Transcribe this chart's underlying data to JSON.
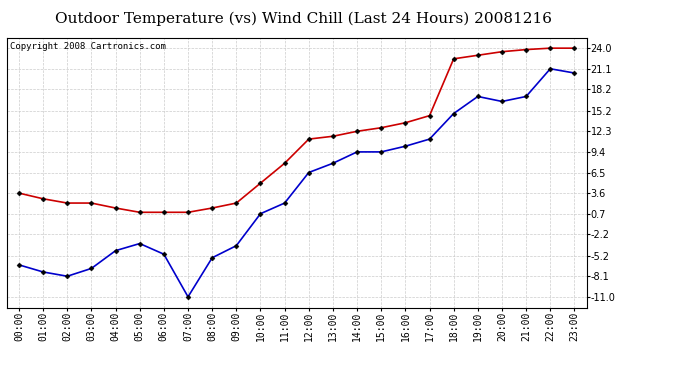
{
  "title": "Outdoor Temperature (vs) Wind Chill (Last 24 Hours) 20081216",
  "copyright": "Copyright 2008 Cartronics.com",
  "hours": [
    "00:00",
    "01:00",
    "02:00",
    "03:00",
    "04:00",
    "05:00",
    "06:00",
    "07:00",
    "08:00",
    "09:00",
    "10:00",
    "11:00",
    "12:00",
    "13:00",
    "14:00",
    "15:00",
    "16:00",
    "17:00",
    "18:00",
    "19:00",
    "20:00",
    "21:00",
    "22:00",
    "23:00"
  ],
  "temp": [
    3.6,
    2.8,
    2.2,
    2.2,
    1.5,
    0.9,
    0.9,
    0.9,
    1.5,
    2.2,
    5.0,
    7.8,
    11.2,
    11.6,
    12.3,
    12.8,
    13.5,
    14.5,
    22.5,
    23.0,
    23.5,
    23.8,
    24.0,
    24.0
  ],
  "windchill": [
    -6.5,
    -7.5,
    -8.1,
    -7.0,
    -4.5,
    -3.5,
    -5.0,
    -11.0,
    -5.5,
    -3.8,
    0.7,
    2.2,
    6.5,
    7.8,
    9.4,
    9.4,
    10.2,
    11.2,
    14.8,
    17.2,
    16.5,
    17.2,
    21.1,
    20.5
  ],
  "yticks": [
    24.0,
    21.1,
    18.2,
    15.2,
    12.3,
    9.4,
    6.5,
    3.6,
    0.7,
    -2.2,
    -5.2,
    -8.1,
    -11.0
  ],
  "ylim": [
    -12.5,
    25.5
  ],
  "temp_color": "#cc0000",
  "windchill_color": "#0000cc",
  "marker": "D",
  "marker_size": 2.5,
  "grid_color": "#cccccc",
  "bg_color": "#ffffff",
  "title_fontsize": 11,
  "axis_fontsize": 7,
  "copyright_fontsize": 6.5
}
